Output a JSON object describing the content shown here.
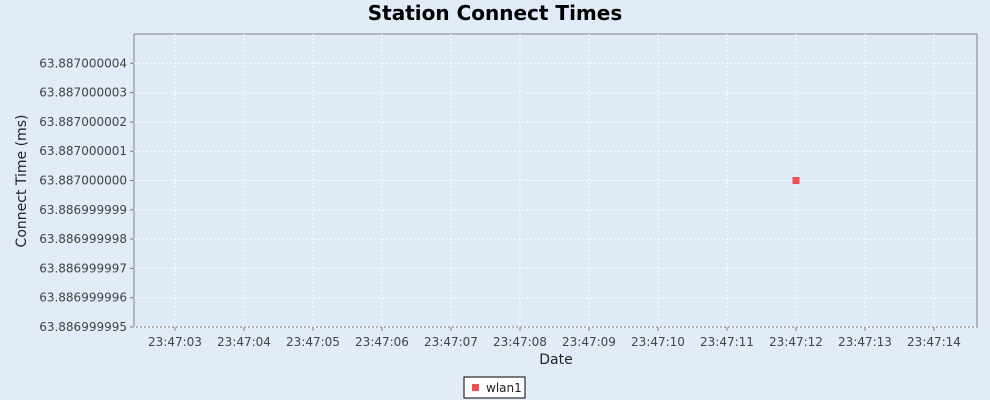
{
  "chart_data": {
    "type": "scatter",
    "title": "Station Connect Times",
    "xlabel": "Date",
    "ylabel": "Connect Time (ms)",
    "x_ticks": [
      "23:47:03",
      "23:47:04",
      "23:47:05",
      "23:47:06",
      "23:47:07",
      "23:47:08",
      "23:47:09",
      "23:47:10",
      "23:47:11",
      "23:47:12",
      "23:47:13",
      "23:47:14"
    ],
    "y_ticks": [
      "63.887000004",
      "63.887000003",
      "63.887000002",
      "63.887000001",
      "63.887000000",
      "63.886999999",
      "63.886999998",
      "63.886999997",
      "63.886999996",
      "63.886999995"
    ],
    "ylim": [
      63.886999995,
      63.887000005
    ],
    "grid": true,
    "legend_position": "bottom",
    "series": [
      {
        "name": "wlan1",
        "color": "#f05050",
        "points": [
          {
            "x": "23:47:12",
            "y": 63.887
          }
        ]
      }
    ]
  }
}
